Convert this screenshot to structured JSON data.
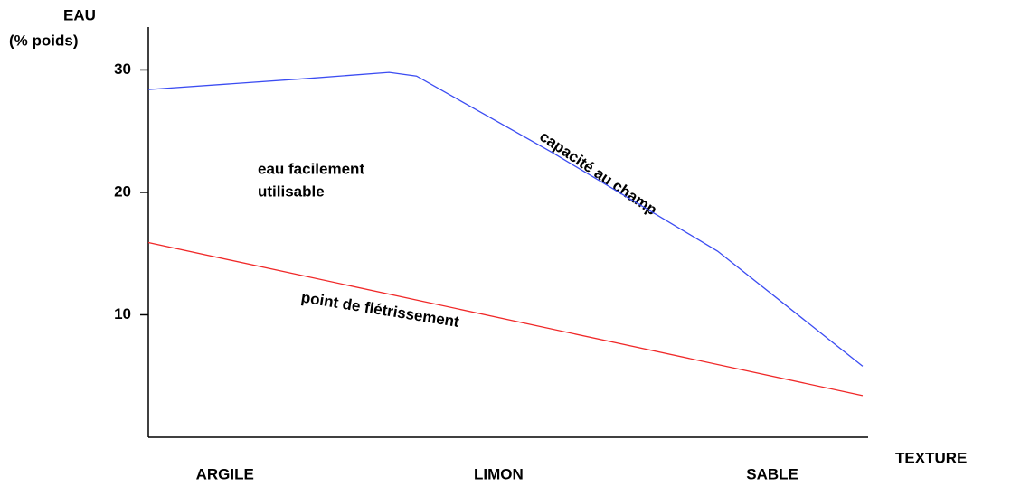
{
  "chart_data": {
    "type": "line",
    "ylabel": [
      "EAU",
      "(% poids)"
    ],
    "xlabel": "TEXTURE",
    "xlim": [
      -0.28,
      2.35
    ],
    "xticks": [
      {
        "value": 0,
        "label": "ARGILE"
      },
      {
        "value": 1,
        "label": "LIMON"
      },
      {
        "value": 2,
        "label": "SABLE"
      }
    ],
    "ylim": [
      0,
      33.5
    ],
    "yticks": [
      10,
      20,
      30
    ],
    "grid": false,
    "series": [
      {
        "name": "capacité au champ",
        "color": "#3b4cf2",
        "x": [
          -0.28,
          0.3,
          0.6,
          0.7,
          1.2,
          1.8,
          2.33
        ],
        "values": [
          28.4,
          29.3,
          29.8,
          29.5,
          23.2,
          15.2,
          5.8
        ]
      },
      {
        "name": "point de flétrissement",
        "color": "#f02828",
        "x": [
          -0.28,
          2.33
        ],
        "values": [
          15.9,
          3.4
        ]
      }
    ],
    "annotations": [
      "eau facilement",
      "utilisable"
    ]
  }
}
